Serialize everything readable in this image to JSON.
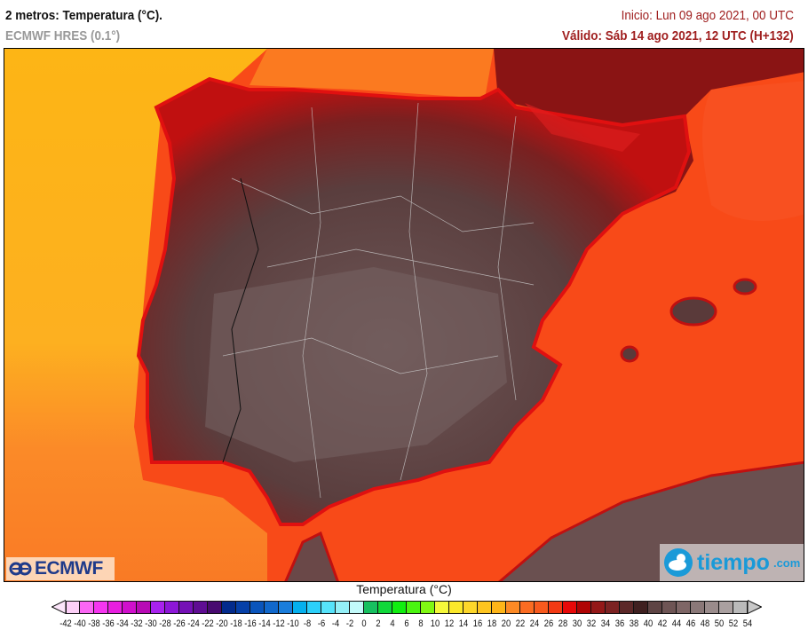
{
  "header": {
    "title": "2 metros: Temperatura (°C).",
    "model": "ECMWF HRES (0.1°)",
    "init": "Inicio: Lun 09 ago 2021, 00 UTC",
    "valid": "Válido: Sáb 14 ago 2021, 12 UTC (H+132)"
  },
  "logos": {
    "left": "ECMWF",
    "right_main": "tiempo",
    "right_suffix": ".com"
  },
  "colorbar": {
    "title": "Temperatura (°C)",
    "labels": [
      "-42",
      "-40",
      "-38",
      "-36",
      "-34",
      "-32",
      "-30",
      "-28",
      "-26",
      "-24",
      "-22",
      "-20",
      "-18",
      "-16",
      "-14",
      "-12",
      "-10",
      "-8",
      "-6",
      "-4",
      "-2",
      "0",
      "2",
      "4",
      "6",
      "8",
      "10",
      "12",
      "14",
      "16",
      "18",
      "20",
      "22",
      "24",
      "26",
      "28",
      "30",
      "32",
      "34",
      "36",
      "38",
      "40",
      "42",
      "44",
      "46",
      "48",
      "50",
      "52",
      "54"
    ],
    "colors": [
      "#fdd0f8",
      "#fb66f4",
      "#f535f0",
      "#e81ee0",
      "#d010cc",
      "#b80ab5",
      "#a822ee",
      "#8d17d8",
      "#7511b6",
      "#5f0d93",
      "#480a70",
      "#032b8c",
      "#0640a8",
      "#0a55bc",
      "#1168cc",
      "#1a7ddb",
      "#05b0ee",
      "#2cd0fa",
      "#56e3fb",
      "#94f0f8",
      "#c2fafa",
      "#17c060",
      "#10d83a",
      "#10ee10",
      "#4af510",
      "#80f812",
      "#f5f83a",
      "#fbe82a",
      "#fdd72a",
      "#fec520",
      "#feb518",
      "#fd8a25",
      "#fb6c22",
      "#f85a1e",
      "#f33a14",
      "#e80808",
      "#b00404",
      "#941818",
      "#7c2222",
      "#5c2828",
      "#3f2020",
      "#5e4444",
      "#6e5555",
      "#7e6666",
      "#8a7878",
      "#9a8c8c",
      "#aaa0a0",
      "#bababa"
    ],
    "under_color": "#fde6fb",
    "over_color": "#c8c8c8"
  }
}
